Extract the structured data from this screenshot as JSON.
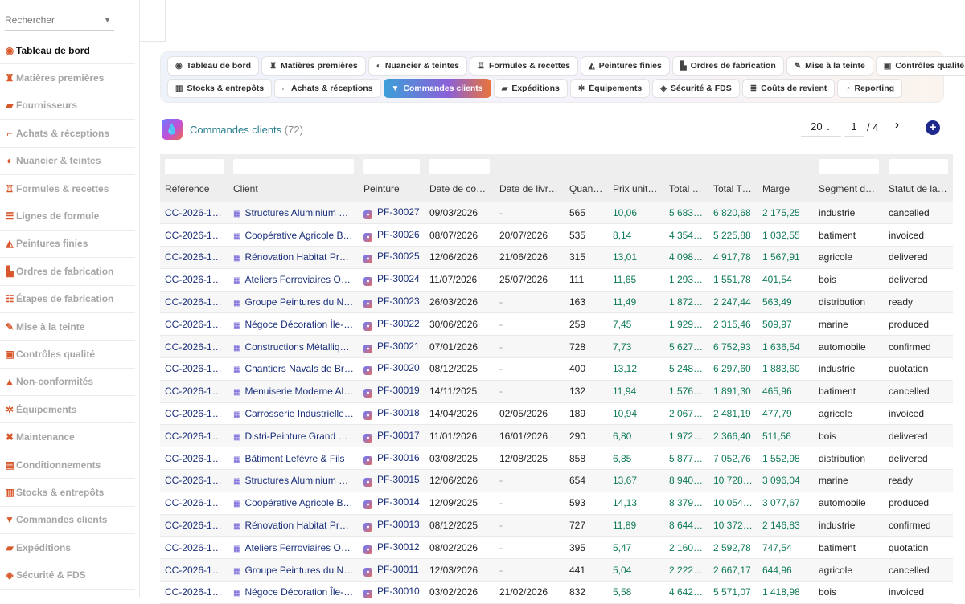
{
  "sidebar": {
    "search_placeholder": "Rechercher",
    "items": [
      {
        "label": "Tableau de bord",
        "icon": "gauge-icon",
        "glyph": "◉",
        "active": true
      },
      {
        "label": "Matières premières",
        "icon": "flask-icon",
        "glyph": "♜",
        "active": false
      },
      {
        "label": "Fournisseurs",
        "icon": "truck-icon",
        "glyph": "▰",
        "active": false
      },
      {
        "label": "Achats & réceptions",
        "icon": "dolly-icon",
        "glyph": "⌐",
        "active": false
      },
      {
        "label": "Nuancier & teintes",
        "icon": "palette-icon",
        "glyph": "◐",
        "active": false
      },
      {
        "label": "Formules & recettes",
        "icon": "recipe-icon",
        "glyph": "♖",
        "active": false
      },
      {
        "label": "Lignes de formule",
        "icon": "list-icon",
        "glyph": "☰",
        "active": false
      },
      {
        "label": "Peintures finies",
        "icon": "paint-bucket-icon",
        "glyph": "◭",
        "active": false
      },
      {
        "label": "Ordres de fabrication",
        "icon": "industry-icon",
        "glyph": "▙",
        "active": false
      },
      {
        "label": "Étapes de fabrication",
        "icon": "steps-icon",
        "glyph": "☷",
        "active": false
      },
      {
        "label": "Mise à la teinte",
        "icon": "eyedropper-icon",
        "glyph": "✎",
        "active": false
      },
      {
        "label": "Contrôles qualité",
        "icon": "clipboard-check-icon",
        "glyph": "▣",
        "active": false
      },
      {
        "label": "Non-conformités",
        "icon": "warning-icon",
        "glyph": "▲",
        "active": false
      },
      {
        "label": "Équipements",
        "icon": "cogs-icon",
        "glyph": "✲",
        "active": false
      },
      {
        "label": "Maintenance",
        "icon": "tools-icon",
        "glyph": "✖",
        "active": false
      },
      {
        "label": "Conditionnements",
        "icon": "box-icon",
        "glyph": "▤",
        "active": false
      },
      {
        "label": "Stocks & entrepôts",
        "icon": "warehouse-icon",
        "glyph": "▥",
        "active": false
      },
      {
        "label": "Commandes clients",
        "icon": "cart-icon",
        "glyph": "▼",
        "active": false
      },
      {
        "label": "Expéditions",
        "icon": "shipping-icon",
        "glyph": "▰",
        "active": false
      },
      {
        "label": "Sécurité & FDS",
        "icon": "shield-icon",
        "glyph": "◈",
        "active": false
      }
    ]
  },
  "tabs": {
    "row1": [
      {
        "label": "Tableau de bord",
        "icon": "gauge-icon",
        "glyph": "◉"
      },
      {
        "label": "Matières premières",
        "icon": "flask-icon",
        "glyph": "♜"
      },
      {
        "label": "Nuancier & teintes",
        "icon": "palette-icon",
        "glyph": "◐"
      },
      {
        "label": "Formules & recettes",
        "icon": "recipe-icon",
        "glyph": "♖"
      },
      {
        "label": "Peintures finies",
        "icon": "paint-bucket-icon",
        "glyph": "◭"
      },
      {
        "label": "Ordres de fabrication",
        "icon": "industry-icon",
        "glyph": "▙"
      },
      {
        "label": "Mise à la teinte",
        "icon": "eyedropper-icon",
        "glyph": "✎"
      },
      {
        "label": "Contrôles qualité",
        "icon": "clipboard-check-icon",
        "glyph": "▣"
      }
    ],
    "row2": [
      {
        "label": "Stocks & entrepôts",
        "icon": "warehouse-icon",
        "glyph": "▥"
      },
      {
        "label": "Achats & réceptions",
        "icon": "dolly-icon",
        "glyph": "⌐"
      },
      {
        "label": "Commandes clients",
        "icon": "cart-icon",
        "glyph": "▼",
        "active": true
      },
      {
        "label": "Expéditions",
        "icon": "shipping-icon",
        "glyph": "▰"
      },
      {
        "label": "Équipements",
        "icon": "cogs-icon",
        "glyph": "✲"
      },
      {
        "label": "Sécurité & FDS",
        "icon": "shield-icon",
        "glyph": "◈"
      },
      {
        "label": "Coûts de revient",
        "icon": "coins-icon",
        "glyph": "≣"
      },
      {
        "label": "Reporting",
        "icon": "chart-pie-icon",
        "glyph": "◔"
      }
    ]
  },
  "header": {
    "title": "Commandes clients",
    "count": "(72)",
    "per_page": "20",
    "page_current": "1",
    "page_total": "/  4"
  },
  "table": {
    "columns": [
      "Référence",
      "Client",
      "Peinture",
      "Date de com…",
      "Date de livra…",
      "Quantité",
      "Prix unitaire",
      "Total HT",
      "Total TTC",
      "Marge",
      "Segment de …",
      "Statut de la …"
    ],
    "rows": [
      [
        "CC-2026-1072",
        "Structures Aluminium Vo…",
        "PF-30027",
        "09/03/2026",
        "-",
        "565",
        "10,06",
        "5 683,90",
        "6 820,68",
        "2 175,25",
        "industrie",
        "cancelled"
      ],
      [
        "CC-2026-1071",
        "Coopérative Agricole Be…",
        "PF-30026",
        "08/07/2026",
        "20/07/2026",
        "535",
        "8,14",
        "4 354,90",
        "5 225,88",
        "1 032,55",
        "batiment",
        "invoiced"
      ],
      [
        "CC-2026-1070",
        "Rénovation Habitat Prov…",
        "PF-30025",
        "12/06/2026",
        "21/06/2026",
        "315",
        "13,01",
        "4 098,15",
        "4 917,78",
        "1 567,91",
        "agricole",
        "delivered"
      ],
      [
        "CC-2026-1069",
        "Ateliers Ferroviaires Occ…",
        "PF-30024",
        "11/07/2026",
        "25/07/2026",
        "111",
        "11,65",
        "1 293,15",
        "1 551,78",
        "401,54",
        "bois",
        "delivered"
      ],
      [
        "CC-2026-1068",
        "Groupe Peintures du Nord",
        "PF-30023",
        "26/03/2026",
        "-",
        "163",
        "11,49",
        "1 872,87",
        "2 247,44",
        "563,49",
        "distribution",
        "ready"
      ],
      [
        "CC-2026-1067",
        "Négoce Décoration Île-d…",
        "PF-30022",
        "30/06/2026",
        "-",
        "259",
        "7,45",
        "1 929,55",
        "2 315,46",
        "509,97",
        "marine",
        "produced"
      ],
      [
        "CC-2026-1066",
        "Constructions Métallique…",
        "PF-30021",
        "07/01/2026",
        "-",
        "728",
        "7,73",
        "5 627,44",
        "6 752,93",
        "1 636,54",
        "automobile",
        "confirmed"
      ],
      [
        "CC-2026-1065",
        "Chantiers Navals de Brest",
        "PF-30020",
        "08/12/2025",
        "-",
        "400",
        "13,12",
        "5 248,00",
        "6 297,60",
        "1 883,60",
        "industrie",
        "quotation"
      ],
      [
        "CC-2026-1064",
        "Menuiserie Moderne Als…",
        "PF-30019",
        "14/11/2025",
        "-",
        "132",
        "11,94",
        "1 576,08",
        "1 891,30",
        "465,96",
        "batiment",
        "cancelled"
      ],
      [
        "CC-2026-1063",
        "Carrosserie Industrielle …",
        "PF-30018",
        "14/04/2026",
        "02/05/2026",
        "189",
        "10,94",
        "2 067,66",
        "2 481,19",
        "477,79",
        "agricole",
        "invoiced"
      ],
      [
        "CC-2026-1062",
        "Distri-Peinture Grand Ou…",
        "PF-30017",
        "11/01/2026",
        "16/01/2026",
        "290",
        "6,80",
        "1 972,00",
        "2 366,40",
        "511,56",
        "bois",
        "delivered"
      ],
      [
        "CC-2026-1061",
        "Bâtiment Lefèvre & Fils",
        "PF-30016",
        "03/08/2025",
        "12/08/2025",
        "858",
        "6,85",
        "5 877,30",
        "7 052,76",
        "1 552,98",
        "distribution",
        "delivered"
      ],
      [
        "CC-2026-1060",
        "Structures Aluminium Vo…",
        "PF-30015",
        "12/06/2026",
        "-",
        "654",
        "13,67",
        "8 940,18",
        "10 728,22",
        "3 096,04",
        "marine",
        "ready"
      ],
      [
        "CC-2026-1059",
        "Coopérative Agricole Be…",
        "PF-30014",
        "12/09/2025",
        "-",
        "593",
        "14,13",
        "8 379,09",
        "10 054,91",
        "3 077,67",
        "automobile",
        "produced"
      ],
      [
        "CC-2026-1058",
        "Rénovation Habitat Prov…",
        "PF-30013",
        "08/12/2025",
        "-",
        "727",
        "11,89",
        "8 644,03",
        "10 372,84",
        "2 146,83",
        "industrie",
        "confirmed"
      ],
      [
        "CC-2026-1057",
        "Ateliers Ferroviaires Occ…",
        "PF-30012",
        "08/02/2026",
        "-",
        "395",
        "5,47",
        "2 160,65",
        "2 592,78",
        "747,54",
        "batiment",
        "quotation"
      ],
      [
        "CC-2026-1056",
        "Groupe Peintures du Nord",
        "PF-30011",
        "12/03/2026",
        "-",
        "441",
        "5,04",
        "2 222,64",
        "2 667,17",
        "644,96",
        "agricole",
        "cancelled"
      ],
      [
        "CC-2026-1055",
        "Négoce Décoration Île-d…",
        "PF-30010",
        "03/02/2026",
        "21/02/2026",
        "832",
        "5,58",
        "4 642,56",
        "5 571,07",
        "1 418,98",
        "bois",
        "invoiced"
      ]
    ]
  },
  "colors": {
    "accent_orange": "#d8582b",
    "link_blue": "#1a2f7a",
    "money_green": "#0f7a5a",
    "title_teal": "#2a7f8f"
  }
}
